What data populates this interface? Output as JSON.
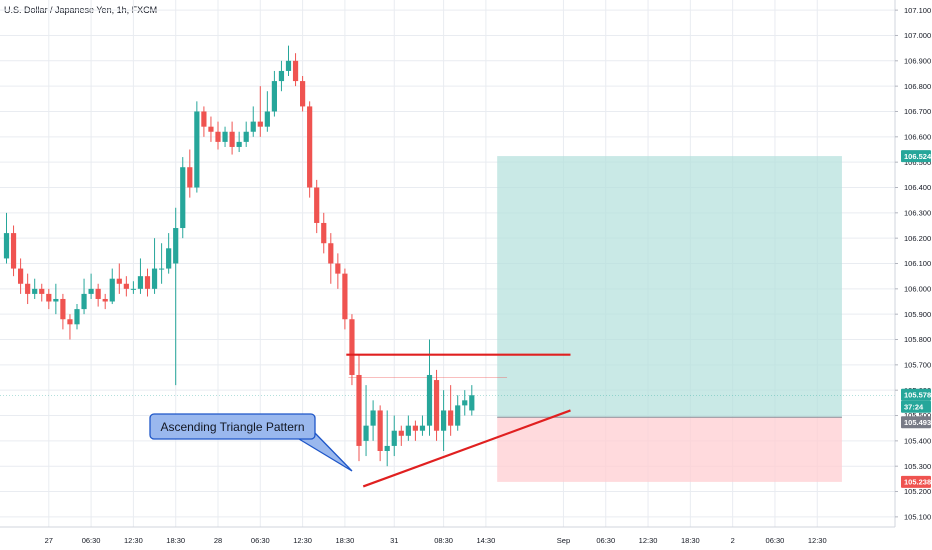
{
  "header": {
    "title": "U.S. Dollar / Japanese Yen, 1h, FXCM"
  },
  "annotation": {
    "text": "Ascending Triangle Pattern"
  },
  "colors": {
    "up": "#26a69a",
    "down": "#ef5350",
    "profit_zone": "#b2dfdb",
    "loss_zone": "#ffcdd2",
    "trendline": "#e02020",
    "grid": "#e9ecf1",
    "callout_fill": "#9ab8ee",
    "callout_border": "#1e56c8"
  },
  "chart_data": {
    "type": "candlestick",
    "ylim": [
      105.06,
      107.14
    ],
    "y_ticks": [
      "107.100",
      "107.000",
      "106.900",
      "106.800",
      "106.700",
      "106.600",
      "106.500",
      "106.400",
      "106.300",
      "106.200",
      "106.100",
      "106.000",
      "105.900",
      "105.800",
      "105.700",
      "105.600",
      "105.500",
      "105.400",
      "105.300",
      "105.200",
      "105.100"
    ],
    "x_ticks": [
      {
        "label": "27",
        "i": 6
      },
      {
        "label": "06:30",
        "i": 12
      },
      {
        "label": "12:30",
        "i": 18
      },
      {
        "label": "18:30",
        "i": 24
      },
      {
        "label": "28",
        "i": 30
      },
      {
        "label": "06:30",
        "i": 36
      },
      {
        "label": "12:30",
        "i": 42
      },
      {
        "label": "18:30",
        "i": 48
      },
      {
        "label": "31",
        "i": 55
      },
      {
        "label": "08:30",
        "i": 62
      },
      {
        "label": "14:30",
        "i": 68
      },
      {
        "label": "Sep",
        "i": 79
      },
      {
        "label": "06:30",
        "i": 85
      },
      {
        "label": "12:30",
        "i": 91
      },
      {
        "label": "18:30",
        "i": 97
      },
      {
        "label": "2",
        "i": 103
      },
      {
        "label": "06:30",
        "i": 109
      },
      {
        "label": "12:30",
        "i": 115
      }
    ],
    "candles": [
      [
        106.12,
        106.22,
        106.3,
        106.1
      ],
      [
        106.22,
        106.08,
        106.25,
        106.05
      ],
      [
        106.08,
        106.02,
        106.12,
        105.98
      ],
      [
        106.02,
        105.98,
        106.06,
        105.94
      ],
      [
        105.98,
        106.0,
        106.04,
        105.96
      ],
      [
        106.0,
        105.98,
        106.02,
        105.95
      ],
      [
        105.98,
        105.95,
        106.0,
        105.92
      ],
      [
        105.95,
        105.96,
        106.02,
        105.9
      ],
      [
        105.96,
        105.88,
        105.98,
        105.84
      ],
      [
        105.88,
        105.86,
        105.9,
        105.8
      ],
      [
        105.86,
        105.92,
        105.94,
        105.84
      ],
      [
        105.92,
        105.98,
        106.04,
        105.9
      ],
      [
        105.98,
        106.0,
        106.06,
        105.96
      ],
      [
        106.0,
        105.96,
        106.02,
        105.93
      ],
      [
        105.96,
        105.95,
        105.98,
        105.92
      ],
      [
        105.95,
        106.04,
        106.08,
        105.94
      ],
      [
        106.04,
        106.02,
        106.1,
        105.98
      ],
      [
        106.02,
        106.0,
        106.05,
        105.97
      ],
      [
        106.0,
        106.0,
        106.03,
        105.98
      ],
      [
        106.0,
        106.05,
        106.12,
        105.98
      ],
      [
        106.05,
        106.0,
        106.08,
        105.97
      ],
      [
        106.0,
        106.08,
        106.2,
        105.98
      ],
      [
        106.08,
        106.08,
        106.18,
        106.02
      ],
      [
        106.08,
        106.16,
        106.22,
        106.06
      ],
      [
        106.1,
        106.24,
        106.32,
        105.62
      ],
      [
        106.24,
        106.48,
        106.52,
        106.2
      ],
      [
        106.48,
        106.4,
        106.55,
        106.36
      ],
      [
        106.4,
        106.7,
        106.74,
        106.38
      ],
      [
        106.7,
        106.64,
        106.72,
        106.6
      ],
      [
        106.64,
        106.62,
        106.68,
        106.58
      ],
      [
        106.62,
        106.58,
        106.66,
        106.55
      ],
      [
        106.58,
        106.62,
        106.64,
        106.56
      ],
      [
        106.62,
        106.56,
        106.66,
        106.53
      ],
      [
        106.56,
        106.58,
        106.62,
        106.54
      ],
      [
        106.58,
        106.62,
        106.66,
        106.56
      ],
      [
        106.62,
        106.66,
        106.72,
        106.6
      ],
      [
        106.66,
        106.64,
        106.8,
        106.6
      ],
      [
        106.64,
        106.7,
        106.78,
        106.62
      ],
      [
        106.7,
        106.82,
        106.86,
        106.68
      ],
      [
        106.82,
        106.86,
        106.9,
        106.78
      ],
      [
        106.86,
        106.9,
        106.96,
        106.84
      ],
      [
        106.9,
        106.82,
        106.93,
        106.8
      ],
      [
        106.82,
        106.72,
        106.84,
        106.7
      ],
      [
        106.72,
        106.4,
        106.74,
        106.36
      ],
      [
        106.4,
        106.26,
        106.43,
        106.22
      ],
      [
        106.26,
        106.18,
        106.3,
        106.14
      ],
      [
        106.18,
        106.1,
        106.22,
        106.02
      ],
      [
        106.1,
        106.06,
        106.14,
        106.0
      ],
      [
        106.06,
        105.88,
        106.08,
        105.84
      ],
      [
        105.88,
        105.66,
        105.9,
        105.62
      ],
      [
        105.66,
        105.38,
        105.74,
        105.32
      ],
      [
        105.4,
        105.46,
        105.62,
        105.34
      ],
      [
        105.46,
        105.52,
        105.56,
        105.4
      ],
      [
        105.52,
        105.36,
        105.54,
        105.32
      ],
      [
        105.36,
        105.38,
        105.52,
        105.3
      ],
      [
        105.38,
        105.44,
        105.5,
        105.34
      ],
      [
        105.44,
        105.42,
        105.46,
        105.38
      ],
      [
        105.42,
        105.46,
        105.5,
        105.4
      ],
      [
        105.46,
        105.44,
        105.48,
        105.4
      ],
      [
        105.44,
        105.46,
        105.5,
        105.42
      ],
      [
        105.46,
        105.66,
        105.8,
        105.42
      ],
      [
        105.64,
        105.44,
        105.68,
        105.4
      ],
      [
        105.44,
        105.52,
        105.6,
        105.36
      ],
      [
        105.52,
        105.46,
        105.62,
        105.42
      ],
      [
        105.46,
        105.54,
        105.58,
        105.44
      ],
      [
        105.54,
        105.56,
        105.6,
        105.5
      ],
      [
        105.52,
        105.58,
        105.62,
        105.5
      ]
    ],
    "levels": {
      "target": "106.524",
      "current": "105.578",
      "countdown": "37:24",
      "entry": "105.493",
      "stop": "105.238"
    },
    "position": {
      "target": 106.524,
      "entry": 105.493,
      "stop": 105.238,
      "start_i": 69.6,
      "end_i": 118.5
    },
    "triangle": {
      "resistance": {
        "from": [
          48.2,
          105.74
        ],
        "to": [
          80.0,
          105.74
        ]
      },
      "support": {
        "from": [
          50.6,
          105.22
        ],
        "to": [
          80.0,
          105.52
        ]
      }
    }
  }
}
